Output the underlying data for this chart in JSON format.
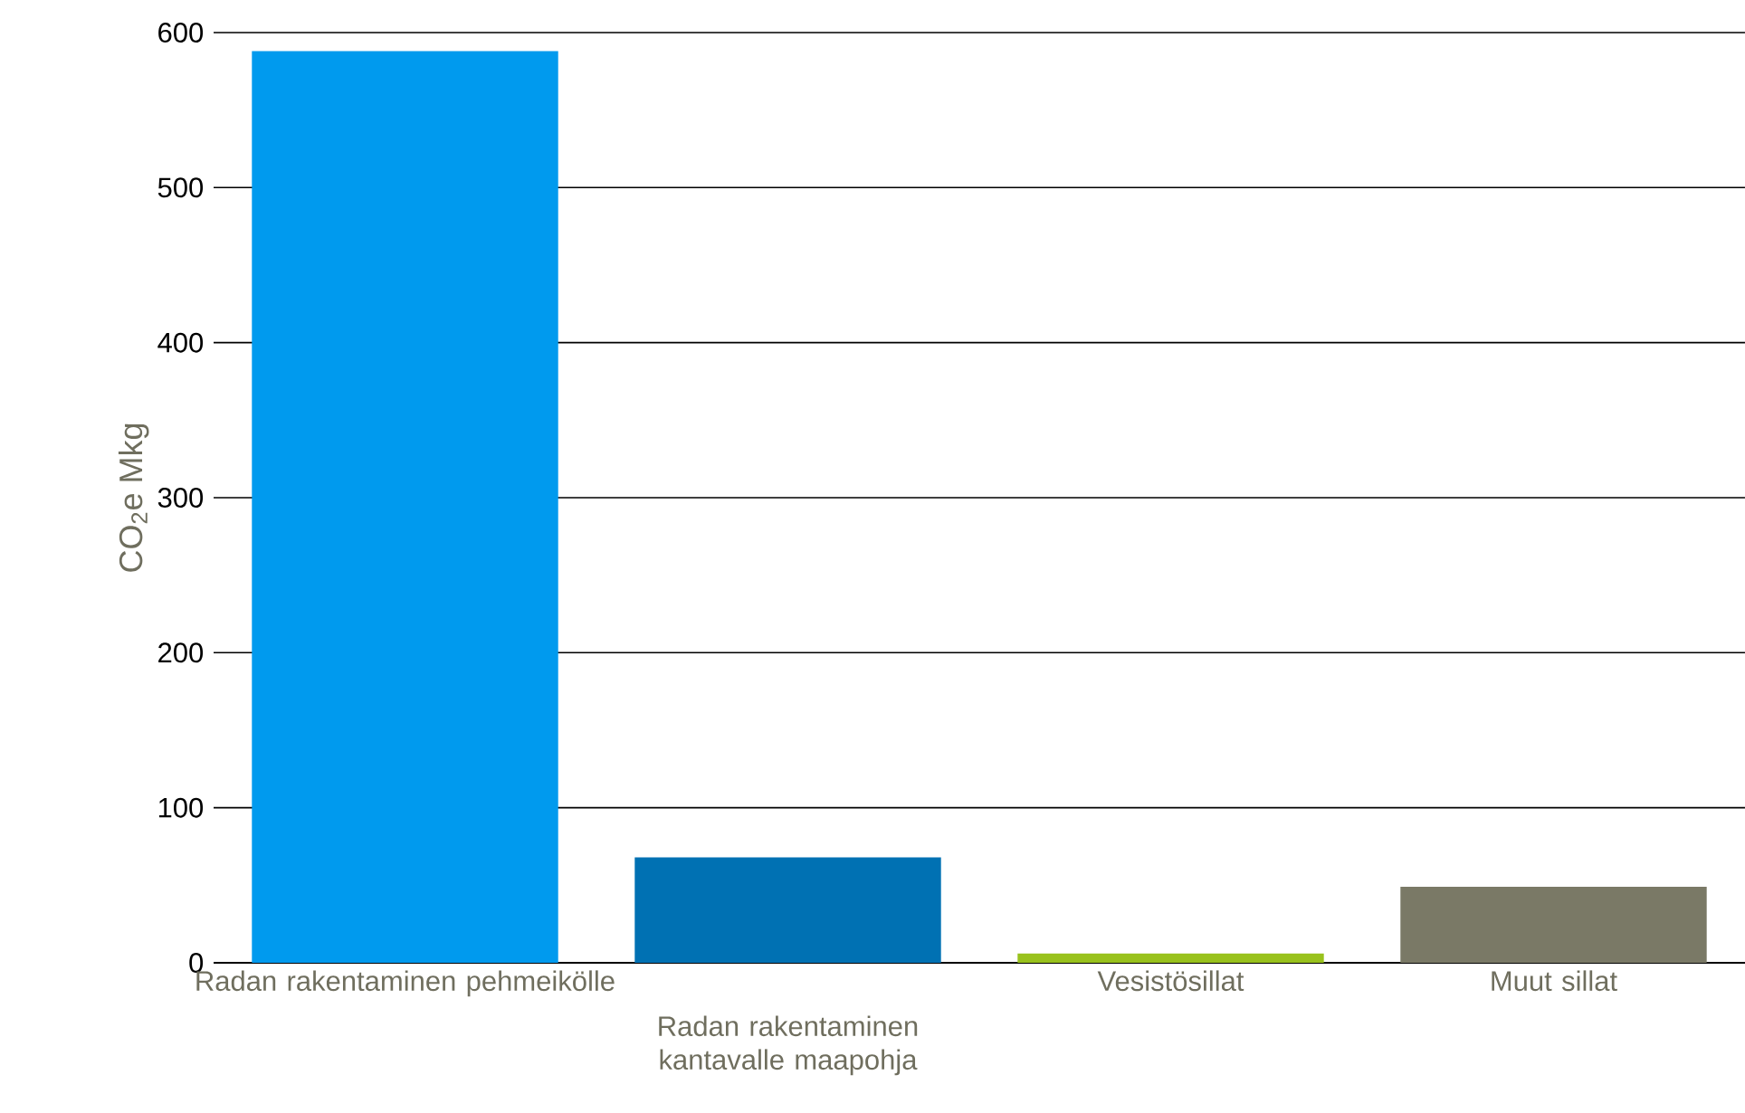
{
  "chart_data": {
    "type": "bar",
    "ylabel": "CO$_{2}$e Mkg",
    "categories": [
      "Radan rakentaminen pehmeikölle",
      "Radan rakentaminen kantavalle maapohja",
      "Vesistösillat",
      "Muut sillat"
    ],
    "values": [
      588,
      68,
      6,
      49
    ],
    "colors": [
      "#009aee",
      "#0071b3",
      "#99c21d",
      "#7a7966"
    ],
    "ylim": [
      0,
      600
    ],
    "yticks": [
      0,
      100,
      200,
      300,
      400,
      500,
      600
    ],
    "grid": "y"
  }
}
